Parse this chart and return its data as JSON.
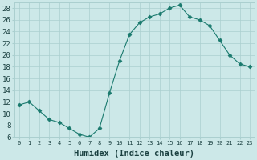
{
  "x": [
    0,
    1,
    2,
    3,
    4,
    5,
    6,
    7,
    8,
    9,
    10,
    11,
    12,
    13,
    14,
    15,
    16,
    17,
    18,
    19,
    20,
    21,
    22,
    23
  ],
  "y": [
    11.5,
    12,
    10.5,
    9,
    8.5,
    7.5,
    6.5,
    6,
    7.5,
    13.5,
    19,
    23.5,
    25.5,
    26.5,
    27,
    28,
    28.5,
    26.5,
    26,
    25,
    22.5,
    20,
    18.5,
    18
  ],
  "line_color": "#1a7a6e",
  "marker": "D",
  "marker_size": 2.5,
  "bg_color": "#cce8e8",
  "grid_color": "#aacfcf",
  "xlabel": "Humidex (Indice chaleur)",
  "ylim": [
    6,
    29
  ],
  "yticks": [
    6,
    8,
    10,
    12,
    14,
    16,
    18,
    20,
    22,
    24,
    26,
    28
  ],
  "xlim": [
    -0.5,
    23.5
  ],
  "xticks": [
    0,
    1,
    2,
    3,
    4,
    5,
    6,
    7,
    8,
    9,
    10,
    11,
    12,
    13,
    14,
    15,
    16,
    17,
    18,
    19,
    20,
    21,
    22,
    23
  ],
  "xlabel_fontsize": 7.5,
  "tick_fontsize": 6.5,
  "line_color_text": "#1a4040"
}
